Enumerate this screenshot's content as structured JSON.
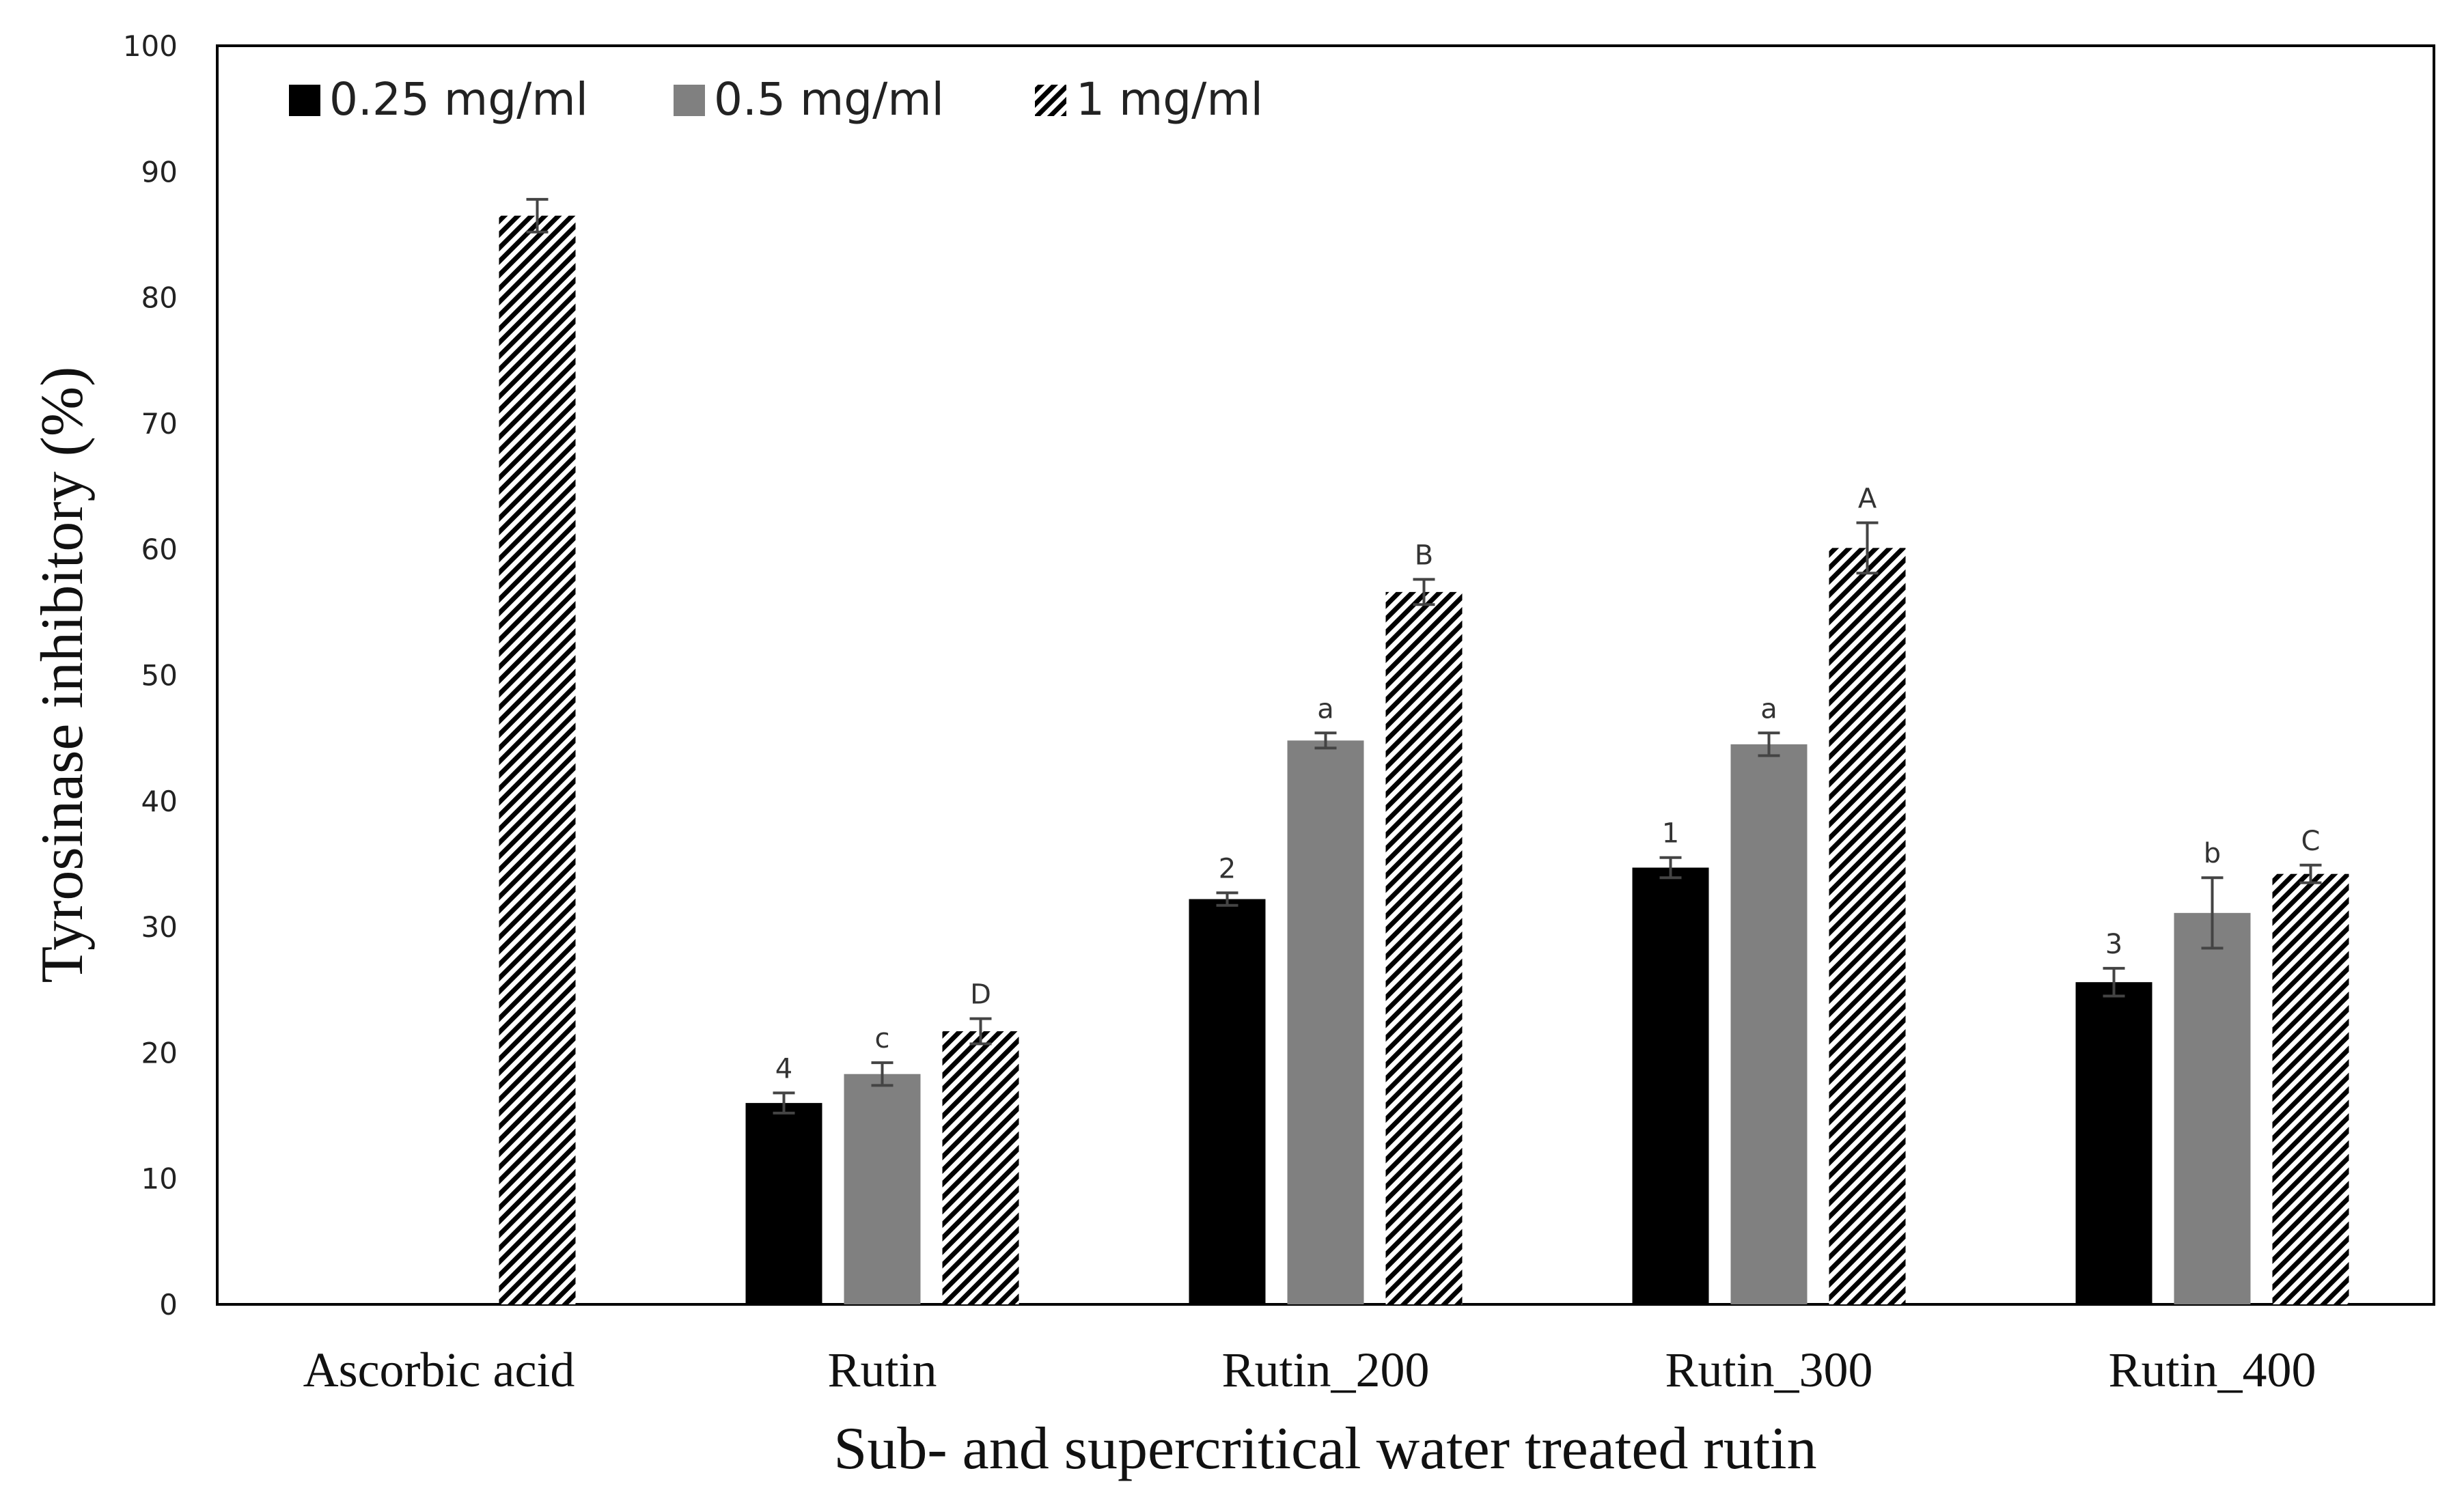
{
  "chart_data": {
    "type": "bar",
    "title": "",
    "xlabel": "Sub- and supercritical water treated rutin",
    "ylabel": "Tyrosinase inhibitory (%)",
    "ylim": [
      0,
      100
    ],
    "yticks": [
      0,
      10,
      20,
      30,
      40,
      50,
      60,
      70,
      80,
      90,
      100
    ],
    "grid": false,
    "legend_position": "top-left",
    "categories": [
      "Ascorbic acid",
      "Rutin",
      "Rutin_200",
      "Rutin_300",
      "Rutin_400"
    ],
    "series": [
      {
        "name": "0.25 mg/ml",
        "fill": "#000000",
        "pattern": "solid",
        "values": [
          null,
          16.0,
          32.2,
          34.7,
          25.6
        ],
        "errors": [
          null,
          0.8,
          0.5,
          0.8,
          1.1
        ],
        "letters": [
          null,
          "4",
          "2",
          "1",
          "3"
        ]
      },
      {
        "name": "0.5 mg/ml",
        "fill": "#808080",
        "pattern": "solid",
        "values": [
          null,
          18.3,
          44.8,
          44.5,
          31.1
        ],
        "errors": [
          null,
          0.9,
          0.6,
          0.9,
          2.8
        ],
        "letters": [
          null,
          "c",
          "a",
          "a",
          "b"
        ]
      },
      {
        "name": "1 mg/ml",
        "fill": "#000000",
        "pattern": "hatch",
        "values": [
          86.5,
          21.7,
          56.6,
          60.1,
          34.2
        ],
        "errors": [
          1.3,
          1.0,
          1.0,
          2.0,
          0.7
        ],
        "letters": [
          null,
          "D",
          "B",
          "A",
          "C"
        ]
      }
    ]
  }
}
